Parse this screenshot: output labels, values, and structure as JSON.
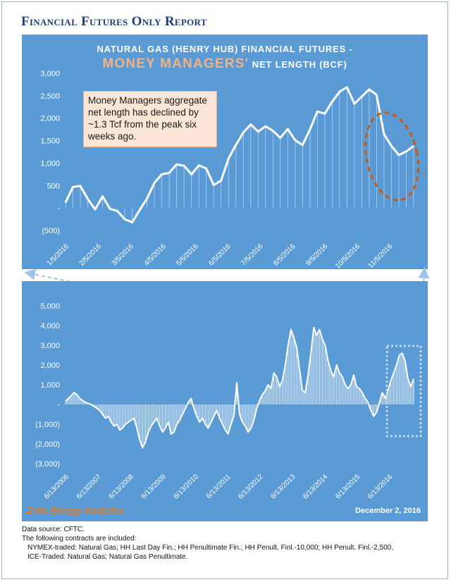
{
  "report_title": "Financial Futures Only Report",
  "chart_data": [
    {
      "type": "line",
      "title": "NATURAL GAS (HENRY HUB) FINANCIAL FUTURES -",
      "subtitle_highlight": "MONEY MANAGERS'",
      "subtitle_rest": " NET LENGTH (BCF)",
      "y_ticks": [
        "3,000",
        "2,500",
        "2,000",
        "1,500",
        "1,000",
        "500",
        "-",
        "(500)"
      ],
      "ylim": [
        -500,
        3000
      ],
      "x_ticks": [
        "1/5/2016",
        "2/5/2016",
        "3/5/2016",
        "4/5/2016",
        "5/5/2016",
        "6/5/2016",
        "7/5/2016",
        "8/5/2016",
        "9/5/2016",
        "10/5/2016",
        "11/5/2016"
      ],
      "series": [
        {
          "values": [
            120,
            470,
            490,
            200,
            -30,
            260,
            -20,
            -70,
            -250,
            -320,
            -50,
            210,
            560,
            750,
            780,
            970,
            940,
            750,
            950,
            880,
            510,
            610,
            1100,
            1400,
            1680,
            1860,
            1700,
            1820,
            1720,
            1560,
            1760,
            1510,
            1400,
            1750,
            2150,
            2100,
            2370,
            2590,
            2690,
            2320,
            2480,
            2640,
            2520,
            1640,
            1380,
            1180,
            1260,
            1380
          ]
        }
      ],
      "annotation": "Money Managers aggregate net length has declined by ~1.3 Tcf from the peak six weeks ago.",
      "colors": {
        "line": "#ffffff",
        "highlight": "#f4b183",
        "ellipse": "#c55a11"
      }
    },
    {
      "type": "area",
      "y_ticks": [
        "5,000",
        "4,000",
        "3,000",
        "2,000",
        "1,000",
        "-",
        "(1,000)",
        "(2,000)",
        "(3,000)"
      ],
      "ylim": [
        -3000,
        5500
      ],
      "x_ticks": [
        "6/13/2006",
        "6/13/2007",
        "6/13/2008",
        "6/13/2009",
        "6/13/2010",
        "6/13/2011",
        "6/13/2012",
        "6/13/2013",
        "6/13/2014",
        "6/13/2015",
        "6/13/2016"
      ],
      "series": [
        {
          "values": [
            150,
            300,
            450,
            600,
            500,
            300,
            200,
            100,
            50,
            0,
            -100,
            -200,
            -300,
            -500,
            -700,
            -600,
            -900,
            -1100,
            -1000,
            -1300,
            -1200,
            -1000,
            -900,
            -800,
            -700,
            -1200,
            -1800,
            -2200,
            -1900,
            -1400,
            -1100,
            -900,
            -700,
            -1100,
            -1400,
            -1200,
            -900,
            -1500,
            -1400,
            -1000,
            -800,
            -500,
            -200,
            100,
            300,
            -200,
            -600,
            -900,
            -700,
            -1000,
            -1200,
            -900,
            -600,
            -300,
            -700,
            -1000,
            -1300,
            -1500,
            -1000,
            -600,
            1100,
            -500,
            -900,
            -1100,
            -1400,
            -1200,
            -800,
            -200,
            200,
            500,
            700,
            1000,
            800,
            1600,
            1400,
            900,
            1200,
            2000,
            3000,
            3800,
            3400,
            2900,
            1800,
            700,
            600,
            1500,
            2600,
            3900,
            3500,
            3800,
            3300,
            3000,
            2200,
            1700,
            1400,
            2000,
            1600,
            1400,
            1000,
            800,
            1000,
            1500,
            900,
            800,
            600,
            300,
            100,
            -300,
            -600,
            -400,
            100,
            600,
            300,
            700,
            1200,
            1600,
            2000,
            2500,
            2600,
            2200,
            1300,
            900,
            1300
          ]
        }
      ],
      "colors": {
        "line": "#ffffff",
        "fill": "#ffffff",
        "box": "#bdd7ee"
      }
    }
  ],
  "brand": "Zeits Energy Analytics",
  "date": "December 2, 2016",
  "notes": {
    "source": "Data source: CFTC.",
    "intro": "The following contracts are included:",
    "nymex": "NYMEX-traded: Natural Gas; HH Last Day Fin.; HH Penultimate Fin.; HH Penult. Finl.-10,000; HH Penult. Finl.-2,500.",
    "ice": "ICE-Traded: Natural Gas; Natural Gas Penultimate."
  }
}
